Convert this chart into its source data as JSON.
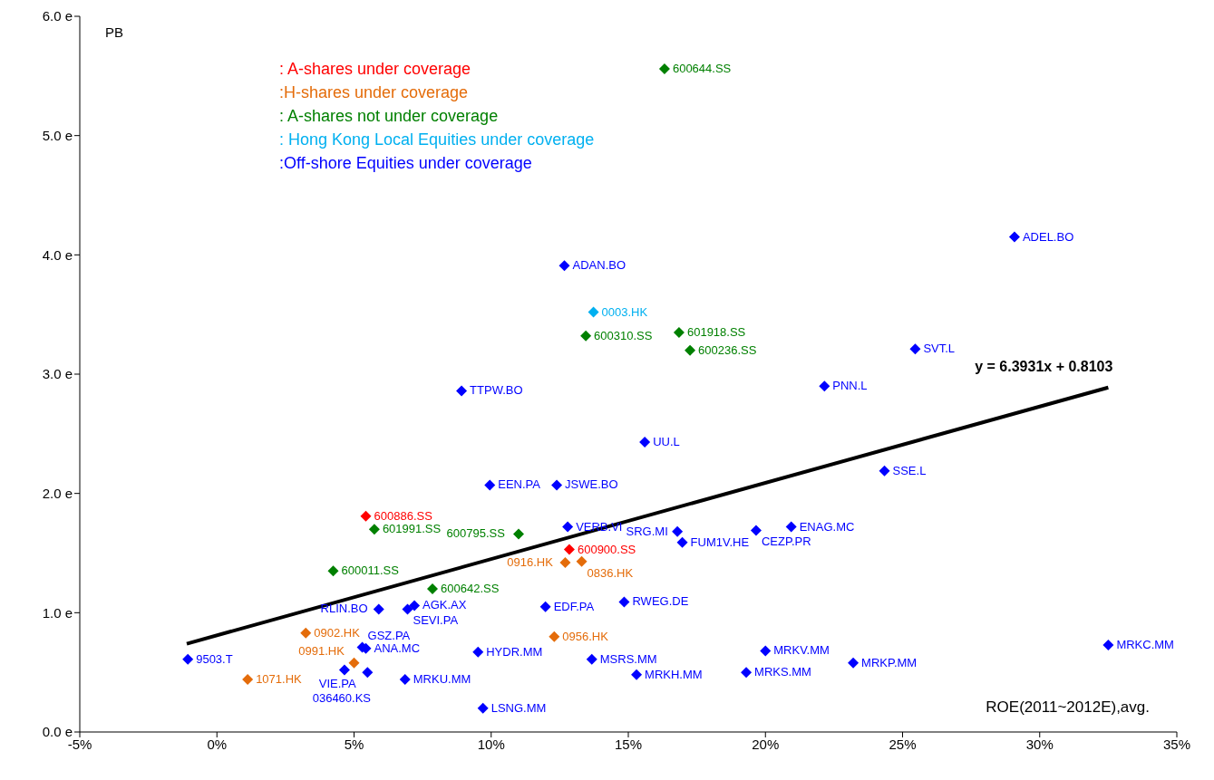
{
  "chart_data": {
    "type": "scatter",
    "xlabel": "ROE(2011~2012E),avg.",
    "ylabel": "PB",
    "marker": "diamond",
    "legend": "top left",
    "xlim": [
      -5,
      35
    ],
    "xticks": [
      {
        "value": -5,
        "label": "-5%"
      },
      {
        "value": 0,
        "label": "0%"
      },
      {
        "value": 5,
        "label": "5%"
      },
      {
        "value": 10,
        "label": "10%"
      },
      {
        "value": 15,
        "label": "15%"
      },
      {
        "value": 20,
        "label": "20%"
      },
      {
        "value": 25,
        "label": "25%"
      },
      {
        "value": 30,
        "label": "30%"
      },
      {
        "value": 35,
        "label": "35%"
      }
    ],
    "ylim": [
      0,
      6
    ],
    "yticks": [
      {
        "value": 0,
        "label": "0.0 e"
      },
      {
        "value": 1,
        "label": "1.0 e"
      },
      {
        "value": 2,
        "label": "2.0 e"
      },
      {
        "value": 3,
        "label": "3.0 e"
      },
      {
        "value": 4,
        "label": "4.0 e"
      },
      {
        "value": 5,
        "label": "5.0 e"
      },
      {
        "value": 6,
        "label": "6.0 e"
      }
    ],
    "series": [
      {
        "name": ": A-shares under coverage",
        "color": "#ff0000",
        "x": [
          5.43,
          12.85
        ],
        "values": [
          1.81,
          1.53
        ]
      },
      {
        "name": ":H-shares under coverage",
        "color": "#e46c0a",
        "x": [
          13.3,
          12.7,
          3.24,
          12.3,
          5.0,
          1.12
        ],
        "values": [
          1.43,
          1.42,
          0.83,
          0.8,
          0.58,
          0.44
        ]
      },
      {
        "name": ": A-shares  not under coverage",
        "color": "#008000",
        "x": [
          16.32,
          13.45,
          16.85,
          17.25,
          5.74,
          11.0,
          4.24,
          7.86
        ],
        "values": [
          5.56,
          3.32,
          3.35,
          3.2,
          1.7,
          1.66,
          1.35,
          1.2
        ]
      },
      {
        "name": ": Hong Kong Local Equities under coverage",
        "color": "#00b0f0",
        "x": [
          13.73
        ],
        "values": [
          3.52
        ]
      },
      {
        "name": ":Off-shore Equities under coverage",
        "color": "#0000ff",
        "x": [
          29.08,
          12.67,
          25.46,
          22.15,
          8.92,
          15.6,
          24.34,
          9.95,
          12.39,
          12.79,
          16.79,
          16.97,
          19.66,
          20.94,
          5.9,
          7.2,
          6.95,
          11.98,
          14.85,
          5.3,
          5.43,
          -1.06,
          9.52,
          5.49,
          4.65,
          6.86,
          9.7,
          13.67,
          15.3,
          19.3,
          20.0,
          23.2,
          32.5
        ],
        "values": [
          4.15,
          3.91,
          3.21,
          2.9,
          2.86,
          2.43,
          2.19,
          2.07,
          2.07,
          1.72,
          1.68,
          1.59,
          1.69,
          1.72,
          1.03,
          1.06,
          1.03,
          1.05,
          1.09,
          0.71,
          0.7,
          0.61,
          0.67,
          0.5,
          0.52,
          0.44,
          0.2,
          0.61,
          0.48,
          0.5,
          0.68,
          0.58,
          0.73
        ]
      },
      {
        "type": "line",
        "marker": "none",
        "color": "#000000",
        "x": [
          -1.1,
          32.5
        ],
        "values": [
          0.74,
          2.888
        ]
      }
    ],
    "annotations": [
      {
        "text": "y = 6.3931x + 0.8103",
        "x": 32.5,
        "y": 2.888
      },
      {
        "text": "600886.SS",
        "x": 5.43,
        "y": 1.81
      },
      {
        "text": "600900.SS",
        "x": 12.85,
        "y": 1.53
      },
      {
        "text": "0836.HK",
        "x": 13.3,
        "y": 1.43
      },
      {
        "text": "0916.HK",
        "x": 12.7,
        "y": 1.42
      },
      {
        "text": "0902.HK",
        "x": 3.24,
        "y": 0.83
      },
      {
        "text": "0956.HK",
        "x": 12.3,
        "y": 0.8
      },
      {
        "text": "0991.HK",
        "x": 5.0,
        "y": 0.58
      },
      {
        "text": "1071.HK",
        "x": 1.12,
        "y": 0.44
      },
      {
        "text": "600644.SS",
        "x": 16.32,
        "y": 5.56
      },
      {
        "text": "600310.SS",
        "x": 13.45,
        "y": 3.32
      },
      {
        "text": "601918.SS",
        "x": 16.85,
        "y": 3.35
      },
      {
        "text": "600236.SS",
        "x": 17.25,
        "y": 3.2
      },
      {
        "text": "601991.SS",
        "x": 5.74,
        "y": 1.7
      },
      {
        "text": "600795.SS",
        "x": 11.0,
        "y": 1.66
      },
      {
        "text": "600011.SS",
        "x": 4.24,
        "y": 1.35
      },
      {
        "text": "600642.SS",
        "x": 7.86,
        "y": 1.2
      },
      {
        "text": "0003.HK",
        "x": 13.73,
        "y": 3.52
      },
      {
        "text": "ADEL.BO",
        "x": 29.08,
        "y": 4.15
      },
      {
        "text": "ADAN.BO",
        "x": 12.67,
        "y": 3.91
      },
      {
        "text": "SVT.L",
        "x": 25.46,
        "y": 3.21
      },
      {
        "text": "PNN.L",
        "x": 22.15,
        "y": 2.9
      },
      {
        "text": "TTPW.BO",
        "x": 8.92,
        "y": 2.86
      },
      {
        "text": "UU.L",
        "x": 15.6,
        "y": 2.43
      },
      {
        "text": "SSE.L",
        "x": 24.34,
        "y": 2.19
      },
      {
        "text": "EEN.PA",
        "x": 9.95,
        "y": 2.07
      },
      {
        "text": "JSWE.BO",
        "x": 12.39,
        "y": 2.07
      },
      {
        "text": "VERB.VI",
        "x": 12.79,
        "y": 1.72
      },
      {
        "text": "SRG.MI",
        "x": 16.79,
        "y": 1.68
      },
      {
        "text": "FUM1V.HE",
        "x": 16.97,
        "y": 1.59
      },
      {
        "text": "CEZP.PR",
        "x": 19.66,
        "y": 1.69
      },
      {
        "text": "ENAG.MC",
        "x": 20.94,
        "y": 1.72
      },
      {
        "text": "RLIN.BO",
        "x": 5.9,
        "y": 1.03
      },
      {
        "text": "AGK.AX",
        "x": 7.2,
        "y": 1.06
      },
      {
        "text": "SEVI.PA",
        "x": 6.95,
        "y": 1.03
      },
      {
        "text": "EDF.PA",
        "x": 11.98,
        "y": 1.05
      },
      {
        "text": "RWEG.DE",
        "x": 14.85,
        "y": 1.09
      },
      {
        "text": "GSZ.PA",
        "x": 5.3,
        "y": 0.71
      },
      {
        "text": "ANA.MC",
        "x": 5.43,
        "y": 0.7
      },
      {
        "text": "9503.T",
        "x": -1.06,
        "y": 0.61
      },
      {
        "text": "HYDR.MM",
        "x": 9.52,
        "y": 0.67
      },
      {
        "text": "VIE.PA",
        "x": 5.49,
        "y": 0.5
      },
      {
        "text": "036460.KS",
        "x": 4.65,
        "y": 0.52
      },
      {
        "text": "MRKU.MM",
        "x": 6.86,
        "y": 0.44
      },
      {
        "text": "LSNG.MM",
        "x": 9.7,
        "y": 0.2
      },
      {
        "text": "MSRS.MM",
        "x": 13.67,
        "y": 0.61
      },
      {
        "text": "MRKH.MM",
        "x": 15.3,
        "y": 0.48
      },
      {
        "text": "MRKS.MM",
        "x": 19.3,
        "y": 0.5
      },
      {
        "text": "MRKV.MM",
        "x": 20.0,
        "y": 0.68
      },
      {
        "text": "MRKP.MM",
        "x": 23.2,
        "y": 0.58
      },
      {
        "text": "MRKC.MM",
        "x": 32.5,
        "y": 0.73
      }
    ]
  }
}
